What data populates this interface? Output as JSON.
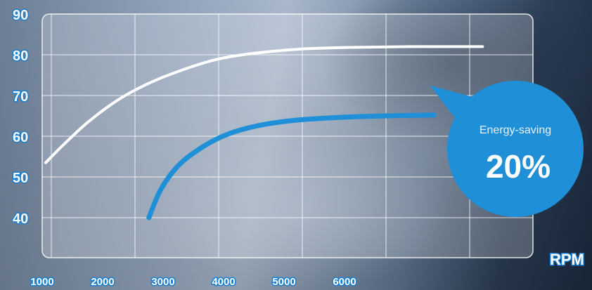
{
  "chart_data": {
    "type": "line",
    "xlabel": "RPM",
    "ylabel": "",
    "xlim": [
      1000,
      8300
    ],
    "ylim": [
      30,
      90
    ],
    "x_ticks": [
      1000,
      2000,
      3000,
      4000,
      5000,
      6000
    ],
    "y_ticks": [
      40,
      50,
      60,
      70,
      80,
      90
    ],
    "grid": true,
    "series": [
      {
        "color": "#ffffff",
        "x": [
          1000,
          1300,
          1700,
          2200,
          2700,
          3200,
          3800,
          4400,
          5200,
          6000,
          7000,
          8200
        ],
        "y": [
          53.5,
          58,
          63.5,
          69,
          73,
          76,
          78.8,
          80.3,
          81.4,
          81.8,
          82,
          82
        ]
      },
      {
        "color": "#1f8fd8",
        "x": [
          2700,
          2900,
          3200,
          3600,
          4000,
          4500,
          5100,
          5800,
          6600,
          7400
        ],
        "y": [
          40,
          47,
          53,
          57.5,
          60.5,
          62.6,
          63.9,
          64.6,
          65,
          65.2
        ]
      }
    ],
    "annotations": [
      {
        "label": "Energy-saving",
        "value": "20%"
      }
    ]
  },
  "colors": {
    "accent": "#1f8fd8",
    "tick_outline": "#1a7fcf",
    "grid": "#ffffff"
  }
}
